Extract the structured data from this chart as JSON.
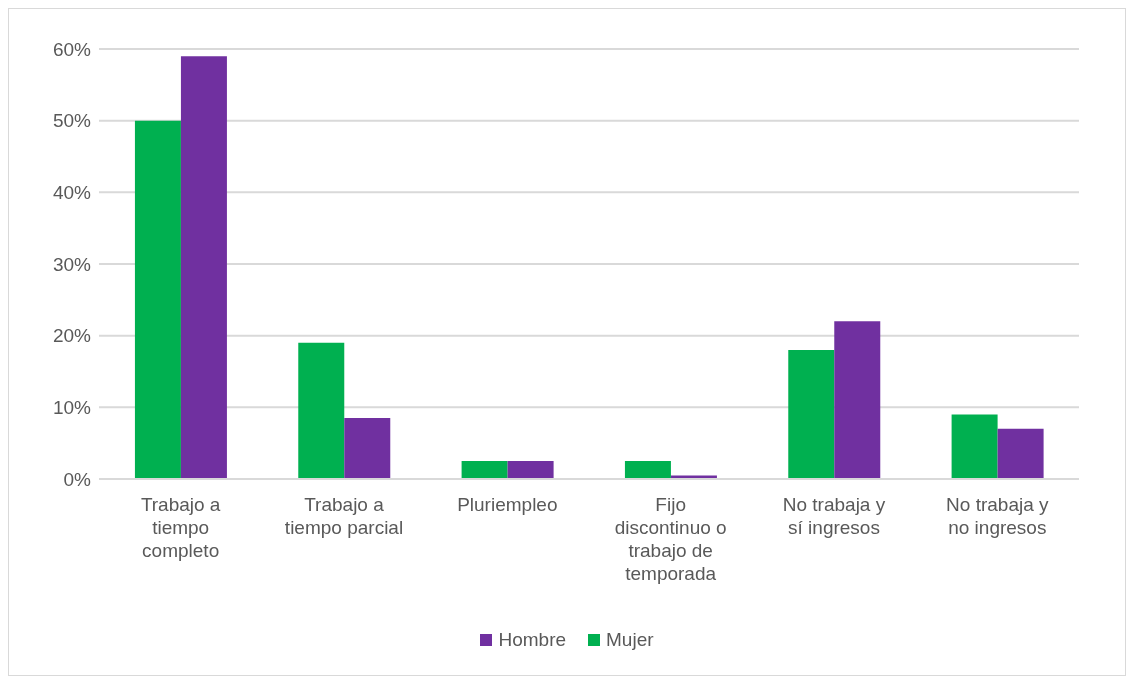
{
  "chart_data": {
    "type": "bar",
    "categories": [
      "Trabajo a tiempo completo",
      "Trabajo a tiempo parcial",
      "Pluriempleo",
      "Fijo discontinuo o trabajo de temporada",
      "No trabaja y sí ingresos",
      "No trabaja y no ingresos"
    ],
    "series": [
      {
        "name": "Mujer",
        "color": "#00b050",
        "values": [
          50,
          19,
          2.5,
          2.5,
          18,
          9
        ]
      },
      {
        "name": "Hombre",
        "color": "#7030a0",
        "values": [
          59,
          8.5,
          2.5,
          0.5,
          22,
          7
        ]
      }
    ],
    "ylim": [
      0,
      60
    ],
    "yticks": [
      {
        "value": 0,
        "label": "0%"
      },
      {
        "value": 10,
        "label": "10%"
      },
      {
        "value": 20,
        "label": "20%"
      },
      {
        "value": 30,
        "label": "30%"
      },
      {
        "value": 40,
        "label": "40%"
      },
      {
        "value": 50,
        "label": "50%"
      },
      {
        "value": 60,
        "label": "60%"
      }
    ],
    "grid": "y",
    "legend": "bottom"
  }
}
